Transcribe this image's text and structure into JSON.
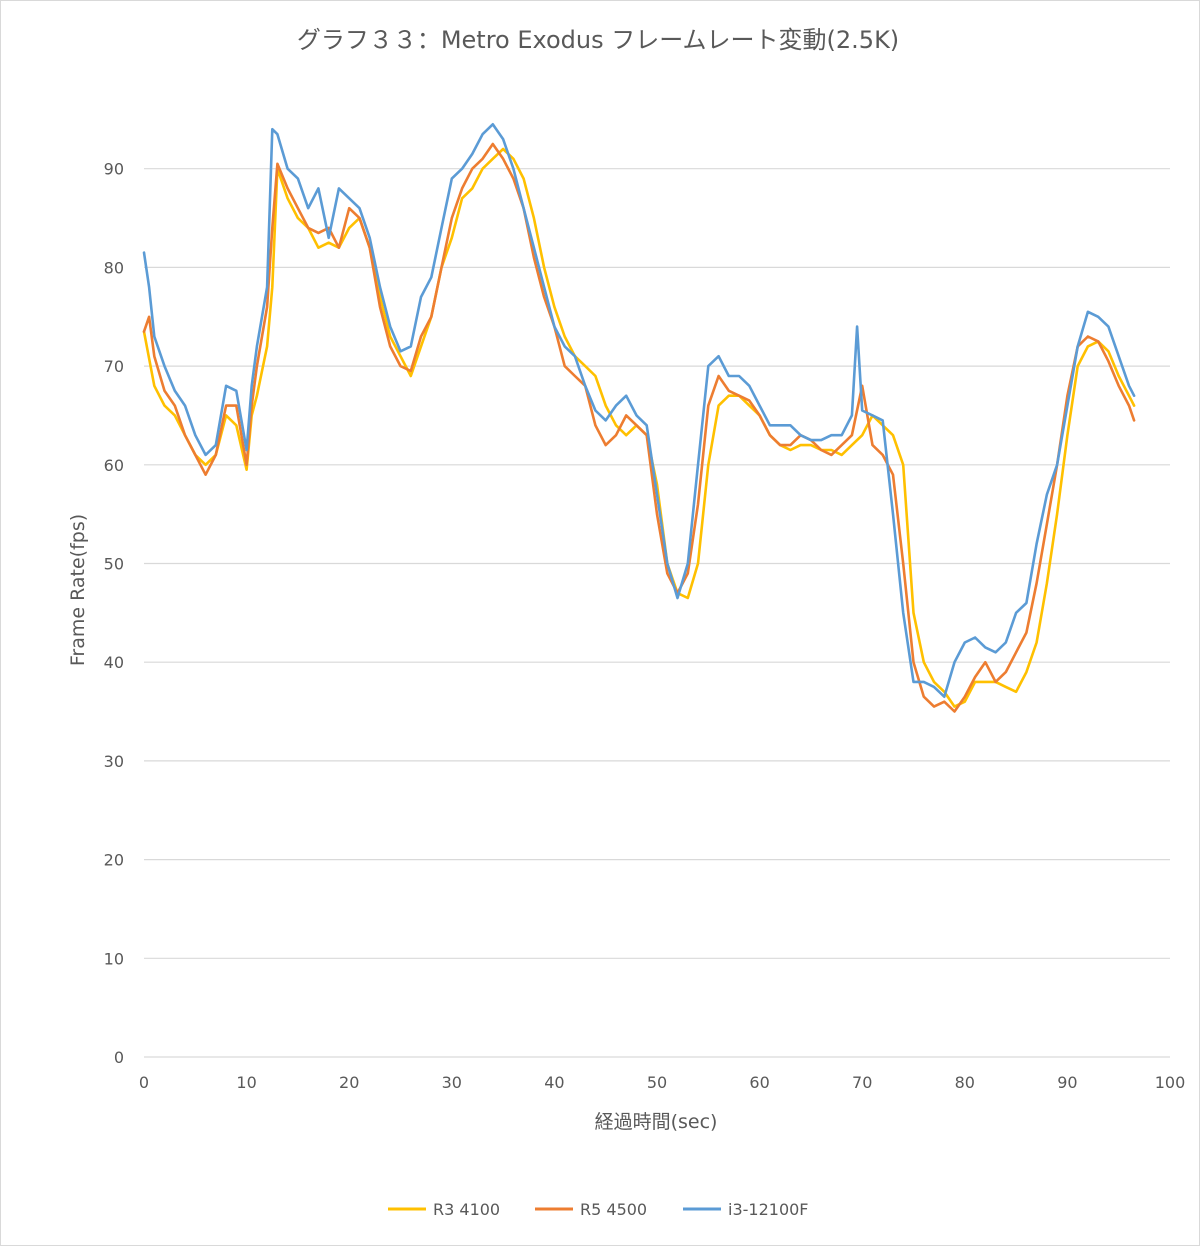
{
  "chart_data": {
    "type": "line",
    "title": "グラフ３３：Metro Exodus フレームレート変動(2.5K)",
    "xlabel": "経過時間(sec)",
    "ylabel": "Frame Rate(fps)",
    "xlim": [
      0,
      100
    ],
    "ylim": [
      0,
      100
    ],
    "xticks": [
      0,
      10,
      20,
      30,
      40,
      50,
      60,
      70,
      80,
      90,
      100
    ],
    "yticks": [
      0,
      10,
      20,
      30,
      40,
      50,
      60,
      70,
      80,
      90
    ],
    "grid": true,
    "legend_position": "bottom",
    "series": [
      {
        "name": "R3 4100",
        "color": "#ffc000",
        "points": [
          [
            0,
            73.5
          ],
          [
            1,
            68
          ],
          [
            2,
            66
          ],
          [
            3,
            65
          ],
          [
            4,
            63
          ],
          [
            5,
            61
          ],
          [
            6,
            60
          ],
          [
            7,
            61
          ],
          [
            8,
            65
          ],
          [
            9,
            64
          ],
          [
            10,
            59.5
          ],
          [
            10.5,
            65
          ],
          [
            11,
            67
          ],
          [
            12,
            72
          ],
          [
            12.5,
            78
          ],
          [
            13,
            90
          ],
          [
            14,
            87
          ],
          [
            15,
            85
          ],
          [
            16,
            84
          ],
          [
            17,
            82
          ],
          [
            18,
            82.5
          ],
          [
            19,
            82
          ],
          [
            20,
            84
          ],
          [
            21,
            85
          ],
          [
            22,
            82
          ],
          [
            23,
            77
          ],
          [
            24,
            73
          ],
          [
            25,
            71
          ],
          [
            26,
            69
          ],
          [
            27,
            72
          ],
          [
            28,
            75
          ],
          [
            29,
            80
          ],
          [
            30,
            83
          ],
          [
            31,
            87
          ],
          [
            32,
            88
          ],
          [
            33,
            90
          ],
          [
            34,
            91
          ],
          [
            35,
            92
          ],
          [
            36,
            91
          ],
          [
            37,
            89
          ],
          [
            38,
            85
          ],
          [
            39,
            80
          ],
          [
            40,
            76
          ],
          [
            41,
            73
          ],
          [
            42,
            71
          ],
          [
            43,
            70
          ],
          [
            44,
            69
          ],
          [
            45,
            66
          ],
          [
            46,
            64
          ],
          [
            47,
            63
          ],
          [
            48,
            64
          ],
          [
            49,
            63
          ],
          [
            50,
            58
          ],
          [
            51,
            50
          ],
          [
            52,
            47
          ],
          [
            53,
            46.5
          ],
          [
            54,
            50
          ],
          [
            55,
            60
          ],
          [
            56,
            66
          ],
          [
            57,
            67
          ],
          [
            58,
            67
          ],
          [
            59,
            66
          ],
          [
            60,
            65
          ],
          [
            61,
            63
          ],
          [
            62,
            62
          ],
          [
            63,
            61.5
          ],
          [
            64,
            62
          ],
          [
            65,
            62
          ],
          [
            66,
            61.5
          ],
          [
            67,
            61.5
          ],
          [
            68,
            61
          ],
          [
            69,
            62
          ],
          [
            70,
            63
          ],
          [
            71,
            65
          ],
          [
            72,
            64
          ],
          [
            73,
            63
          ],
          [
            74,
            60
          ],
          [
            75,
            45
          ],
          [
            76,
            40
          ],
          [
            77,
            38
          ],
          [
            78,
            37
          ],
          [
            79,
            35.5
          ],
          [
            80,
            36
          ],
          [
            81,
            38
          ],
          [
            82,
            38
          ],
          [
            83,
            38
          ],
          [
            84,
            37.5
          ],
          [
            85,
            37
          ],
          [
            86,
            39
          ],
          [
            87,
            42
          ],
          [
            88,
            48
          ],
          [
            89,
            55
          ],
          [
            90,
            63
          ],
          [
            91,
            70
          ],
          [
            92,
            72
          ],
          [
            93,
            72.5
          ],
          [
            94,
            71.5
          ],
          [
            95,
            69
          ],
          [
            96,
            67
          ],
          [
            96.5,
            66
          ]
        ]
      },
      {
        "name": "R5 4500",
        "color": "#ed7d31",
        "points": [
          [
            0,
            73.5
          ],
          [
            0.5,
            75
          ],
          [
            1,
            71
          ],
          [
            2,
            67.5
          ],
          [
            3,
            66
          ],
          [
            4,
            63
          ],
          [
            5,
            61
          ],
          [
            6,
            59
          ],
          [
            7,
            61
          ],
          [
            8,
            66
          ],
          [
            9,
            66
          ],
          [
            10,
            60
          ],
          [
            10.5,
            66
          ],
          [
            11,
            70
          ],
          [
            12,
            76
          ],
          [
            12.5,
            84
          ],
          [
            13,
            90.5
          ],
          [
            14,
            88
          ],
          [
            15,
            86
          ],
          [
            16,
            84
          ],
          [
            17,
            83.5
          ],
          [
            18,
            84
          ],
          [
            19,
            82
          ],
          [
            20,
            86
          ],
          [
            21,
            85
          ],
          [
            22,
            82
          ],
          [
            23,
            76
          ],
          [
            24,
            72
          ],
          [
            25,
            70
          ],
          [
            26,
            69.5
          ],
          [
            27,
            73
          ],
          [
            28,
            75
          ],
          [
            29,
            80
          ],
          [
            30,
            85
          ],
          [
            31,
            88
          ],
          [
            32,
            90
          ],
          [
            33,
            91
          ],
          [
            34,
            92.5
          ],
          [
            35,
            91
          ],
          [
            36,
            89
          ],
          [
            37,
            86
          ],
          [
            38,
            81
          ],
          [
            39,
            77
          ],
          [
            40,
            74
          ],
          [
            41,
            70
          ],
          [
            42,
            69
          ],
          [
            43,
            68
          ],
          [
            44,
            64
          ],
          [
            45,
            62
          ],
          [
            46,
            63
          ],
          [
            47,
            65
          ],
          [
            48,
            64
          ],
          [
            49,
            63
          ],
          [
            50,
            55
          ],
          [
            51,
            49
          ],
          [
            52,
            47
          ],
          [
            53,
            49
          ],
          [
            54,
            56
          ],
          [
            55,
            66
          ],
          [
            56,
            69
          ],
          [
            57,
            67.5
          ],
          [
            58,
            67
          ],
          [
            59,
            66.5
          ],
          [
            60,
            65
          ],
          [
            61,
            63
          ],
          [
            62,
            62
          ],
          [
            63,
            62
          ],
          [
            64,
            63
          ],
          [
            65,
            62.5
          ],
          [
            66,
            61.5
          ],
          [
            67,
            61
          ],
          [
            68,
            62
          ],
          [
            69,
            63
          ],
          [
            70,
            68
          ],
          [
            71,
            62
          ],
          [
            72,
            61
          ],
          [
            73,
            59
          ],
          [
            74,
            50
          ],
          [
            75,
            40
          ],
          [
            76,
            36.5
          ],
          [
            77,
            35.5
          ],
          [
            78,
            36
          ],
          [
            79,
            35
          ],
          [
            80,
            36.5
          ],
          [
            81,
            38.5
          ],
          [
            82,
            40
          ],
          [
            83,
            38
          ],
          [
            84,
            39
          ],
          [
            85,
            41
          ],
          [
            86,
            43
          ],
          [
            87,
            48
          ],
          [
            88,
            54
          ],
          [
            89,
            60
          ],
          [
            90,
            67
          ],
          [
            91,
            72
          ],
          [
            92,
            73
          ],
          [
            93,
            72.5
          ],
          [
            94,
            70.5
          ],
          [
            95,
            68
          ],
          [
            96,
            66
          ],
          [
            96.5,
            64.5
          ]
        ]
      },
      {
        "name": "i3-12100F",
        "color": "#5b9bd5",
        "points": [
          [
            0,
            81.5
          ],
          [
            0.5,
            78
          ],
          [
            1,
            73
          ],
          [
            2,
            70
          ],
          [
            3,
            67.5
          ],
          [
            4,
            66
          ],
          [
            5,
            63
          ],
          [
            6,
            61
          ],
          [
            7,
            62
          ],
          [
            8,
            68
          ],
          [
            9,
            67.5
          ],
          [
            10,
            61.5
          ],
          [
            10.5,
            68
          ],
          [
            11,
            72
          ],
          [
            12,
            78
          ],
          [
            12.5,
            94
          ],
          [
            13,
            93.5
          ],
          [
            14,
            90
          ],
          [
            15,
            89
          ],
          [
            16,
            86
          ],
          [
            17,
            88
          ],
          [
            18,
            83
          ],
          [
            19,
            88
          ],
          [
            20,
            87
          ],
          [
            21,
            86
          ],
          [
            22,
            83
          ],
          [
            23,
            78
          ],
          [
            24,
            74
          ],
          [
            25,
            71.5
          ],
          [
            26,
            72
          ],
          [
            27,
            77
          ],
          [
            28,
            79
          ],
          [
            29,
            84
          ],
          [
            30,
            89
          ],
          [
            31,
            90
          ],
          [
            32,
            91.5
          ],
          [
            33,
            93.5
          ],
          [
            34,
            94.5
          ],
          [
            35,
            93
          ],
          [
            36,
            90
          ],
          [
            37,
            86
          ],
          [
            38,
            82
          ],
          [
            39,
            78
          ],
          [
            40,
            74
          ],
          [
            41,
            72
          ],
          [
            42,
            71
          ],
          [
            43,
            68
          ],
          [
            44,
            65.5
          ],
          [
            45,
            64.5
          ],
          [
            46,
            66
          ],
          [
            47,
            67
          ],
          [
            48,
            65
          ],
          [
            49,
            64
          ],
          [
            50,
            57
          ],
          [
            51,
            50
          ],
          [
            52,
            46.5
          ],
          [
            53,
            50
          ],
          [
            54,
            60
          ],
          [
            55,
            70
          ],
          [
            56,
            71
          ],
          [
            57,
            69
          ],
          [
            58,
            69
          ],
          [
            59,
            68
          ],
          [
            60,
            66
          ],
          [
            61,
            64
          ],
          [
            62,
            64
          ],
          [
            63,
            64
          ],
          [
            64,
            63
          ],
          [
            65,
            62.5
          ],
          [
            66,
            62.5
          ],
          [
            67,
            63
          ],
          [
            68,
            63
          ],
          [
            69,
            65
          ],
          [
            69.5,
            74
          ],
          [
            70,
            65.5
          ],
          [
            71,
            65
          ],
          [
            72,
            64.5
          ],
          [
            73,
            55
          ],
          [
            74,
            45
          ],
          [
            75,
            38
          ],
          [
            76,
            38
          ],
          [
            77,
            37.5
          ],
          [
            78,
            36.5
          ],
          [
            79,
            40
          ],
          [
            80,
            42
          ],
          [
            81,
            42.5
          ],
          [
            82,
            41.5
          ],
          [
            83,
            41
          ],
          [
            84,
            42
          ],
          [
            85,
            45
          ],
          [
            86,
            46
          ],
          [
            87,
            52
          ],
          [
            88,
            57
          ],
          [
            89,
            60
          ],
          [
            90,
            66
          ],
          [
            91,
            72
          ],
          [
            92,
            75.5
          ],
          [
            93,
            75
          ],
          [
            94,
            74
          ],
          [
            95,
            71
          ],
          [
            96,
            68
          ],
          [
            96.5,
            67
          ]
        ]
      }
    ]
  }
}
